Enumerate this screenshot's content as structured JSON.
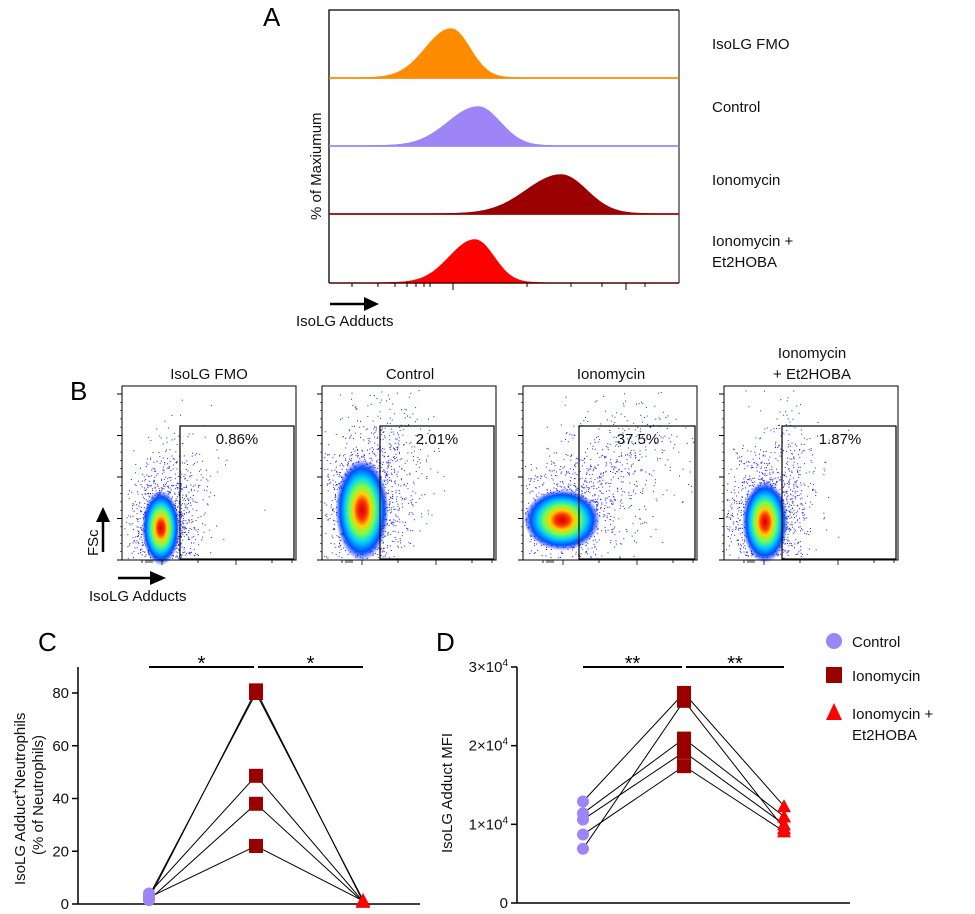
{
  "panels": {
    "a": "A",
    "b": "B",
    "c": "C",
    "d": "D"
  },
  "colors": {
    "fmo": "#ff8c00",
    "control": "#9d85f7",
    "ionomycin": "#9b0000",
    "et2hoba": "#ff0000"
  },
  "panel_a": {
    "ylabel": "% of Maxiumum",
    "xlabel": "IsoLG Adducts",
    "tracks": [
      {
        "label": "IsoLG FMO",
        "color_key": "fmo"
      },
      {
        "label": "Control",
        "color_key": "control"
      },
      {
        "label": "Ionomycin",
        "color_key": "ionomycin"
      },
      {
        "label": "Ionomycin +",
        "label2": "Et2HOBA",
        "color_key": "et2hoba"
      }
    ]
  },
  "panel_b": {
    "ylabel": "FSc",
    "xlabel": "IsoLG Adducts",
    "plots": [
      {
        "title": "IsoLG FMO",
        "gate_percent": "0.86%"
      },
      {
        "title": "Control",
        "gate_percent": "2.01%"
      },
      {
        "title": "Ionomycin",
        "gate_percent": "37.5%"
      },
      {
        "title": "Ionomycin",
        "title2": "+ Et2HOBA",
        "gate_percent": "1.87%"
      }
    ]
  },
  "chart_data": [
    {
      "panel": "C",
      "type": "scatter",
      "ylabel_line1": "IsoLG Adduct",
      "ylabel_sup": "+",
      "ylabel_line1b": "Neutrophils",
      "ylabel_line2": "(% of Neutrophils)",
      "ylim": [
        0,
        90
      ],
      "yticks": [
        "0",
        "20",
        "40",
        "60",
        "80"
      ],
      "ytick_values": [
        0,
        20,
        40,
        60,
        80
      ],
      "groups": [
        "Control",
        "Ionomycin",
        "Ionomycin + Et2HOBA"
      ],
      "paired_values": [
        [
          2.0,
          81.0,
          1.0
        ],
        [
          3.0,
          80.0,
          1.5
        ],
        [
          4.0,
          48.6,
          1.0
        ],
        [
          1.5,
          38.0,
          0.8
        ],
        [
          2.5,
          22.0,
          1.2
        ]
      ],
      "significance": [
        {
          "from": 0,
          "to": 1,
          "label": "*"
        },
        {
          "from": 1,
          "to": 2,
          "label": "*"
        }
      ]
    },
    {
      "panel": "D",
      "type": "scatter",
      "ylabel": "IsoLG Adduct MFI",
      "ylim": [
        0,
        30000
      ],
      "yticks": [
        {
          "base": "0",
          "exp": ""
        },
        {
          "base": "1×10",
          "exp": "4"
        },
        {
          "base": "2×10",
          "exp": "4"
        },
        {
          "base": "3×10",
          "exp": "4"
        }
      ],
      "ytick_values": [
        0,
        10000,
        20000,
        30000
      ],
      "groups": [
        "Control",
        "Ionomycin",
        "Ionomycin + Et2HOBA"
      ],
      "paired_values": [
        [
          12900,
          26700,
          12300
        ],
        [
          6900,
          25700,
          9500
        ],
        [
          11400,
          20900,
          11000
        ],
        [
          10600,
          19200,
          10000
        ],
        [
          8700,
          17400,
          9100
        ]
      ],
      "significance": [
        {
          "from": 0,
          "to": 1,
          "label": "**"
        },
        {
          "from": 1,
          "to": 2,
          "label": "**"
        }
      ]
    }
  ],
  "legend": [
    {
      "label": "Control",
      "shape": "circle",
      "color_key": "control"
    },
    {
      "label": "Ionomycin",
      "shape": "square",
      "color_key": "ionomycin"
    },
    {
      "label": "Ionomycin +",
      "label2": "Et2HOBA",
      "shape": "triangle",
      "color_key": "et2hoba"
    }
  ]
}
